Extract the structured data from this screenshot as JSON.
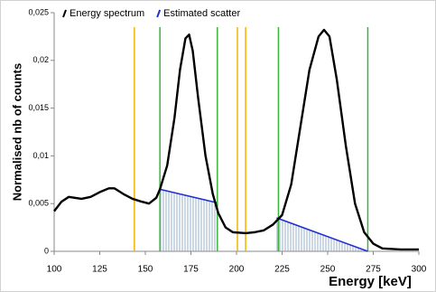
{
  "chart_data": {
    "type": "line",
    "x_label": "Energy [keV]",
    "y_label": "Normalised nb of counts",
    "xlim": [
      100,
      300
    ],
    "xticks": [
      100,
      125,
      150,
      175,
      200,
      225,
      250,
      275,
      300
    ],
    "ylim": [
      0,
      0.025
    ],
    "yticks": [
      0,
      {
        "value": 0.005,
        "label": "0,005"
      },
      {
        "value": 0.01,
        "label": "0,01"
      },
      {
        "value": 0.015,
        "label": "0,015"
      },
      {
        "value": 0.02,
        "label": "0,02"
      },
      {
        "value": 0.025,
        "label": "0,025"
      }
    ],
    "series": [
      {
        "name": "Energy spectrum",
        "color": "#000000",
        "label_color": "#000000",
        "x": [
          100,
          104,
          108,
          115,
          120,
          125,
          130,
          133,
          138,
          143,
          148,
          152,
          156,
          158,
          162,
          166,
          169,
          172,
          174,
          176,
          179,
          183,
          187,
          190,
          194,
          198,
          205,
          210,
          215,
          220,
          225,
          230,
          235,
          240,
          245,
          248,
          251,
          255,
          260,
          265,
          270,
          275,
          280,
          290,
          300
        ],
        "values": [
          0.0042,
          0.0052,
          0.0057,
          0.0055,
          0.0057,
          0.0062,
          0.0066,
          0.0066,
          0.006,
          0.0055,
          0.0052,
          0.005,
          0.0056,
          0.0065,
          0.009,
          0.014,
          0.019,
          0.0223,
          0.0227,
          0.021,
          0.016,
          0.01,
          0.006,
          0.004,
          0.0025,
          0.002,
          0.0019,
          0.002,
          0.0022,
          0.0028,
          0.0038,
          0.007,
          0.013,
          0.019,
          0.0225,
          0.0232,
          0.0225,
          0.018,
          0.011,
          0.005,
          0.002,
          0.0008,
          0.0003,
          0.0002,
          0.0002
        ]
      },
      {
        "name": "Estimated scatter",
        "color": "#1f2fd0",
        "label_color": "#3a3aa8",
        "hatched": true,
        "x": [
          158,
          189,
          null,
          222,
          272
        ],
        "values": [
          0.0065,
          0.0051,
          null,
          0.0035,
          0
        ]
      }
    ],
    "vlines": [
      {
        "x": 144,
        "color": "#f2b400"
      },
      {
        "x": 200.5,
        "color": "#f2b400"
      },
      {
        "x": 205,
        "color": "#f2b400"
      },
      {
        "x": 158,
        "color": "#3cb43c"
      },
      {
        "x": 189.5,
        "color": "#3cb43c"
      },
      {
        "x": 223,
        "color": "#3cb43c"
      },
      {
        "x": 272,
        "color": "#3cb43c"
      }
    ]
  }
}
